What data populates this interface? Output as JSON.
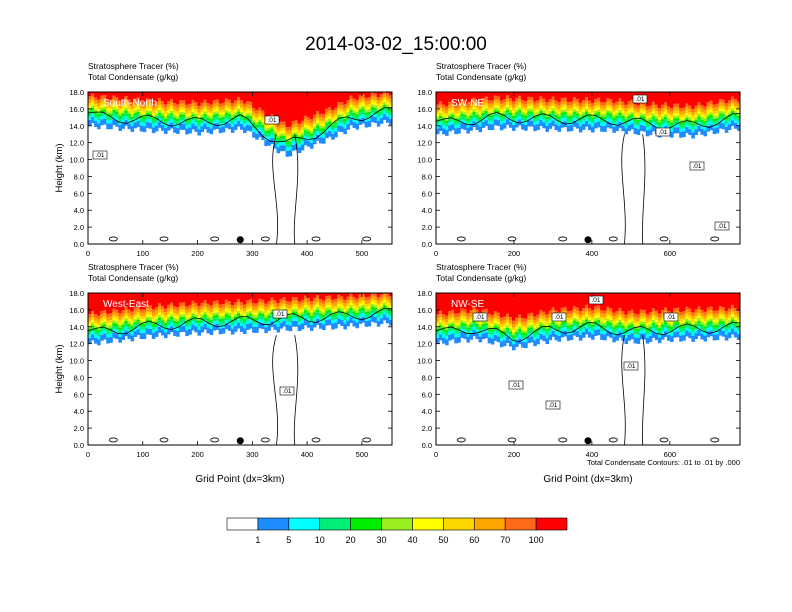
{
  "title": "2014-03-02_15:00:00",
  "footnote": "Total Condensate Contours: .01 to .01 by .000",
  "colors": {
    "bins": [
      "#ffffff",
      "#1e8cff",
      "#00ffff",
      "#00ee76",
      "#00ee00",
      "#9aef1e",
      "#ffff00",
      "#ffd700",
      "#ffa500",
      "#ff6a1a",
      "#ff0000"
    ]
  },
  "colorbar": {
    "labels": [
      "1",
      "5",
      "10",
      "20",
      "30",
      "40",
      "50",
      "60",
      "70",
      "100"
    ]
  },
  "chart_data": [
    {
      "type": "heatmap",
      "name": "South-North",
      "subtitle1": "Stratosphere Tracer   (%)",
      "subtitle2": "Total Condensate   (g/kg)",
      "ylabel": "Height (km)",
      "xlabel": "",
      "xlim": [
        0,
        555
      ],
      "ylim": [
        0,
        18
      ],
      "xticks": [
        "0",
        "100",
        "200",
        "300",
        "400",
        "500"
      ],
      "yticks": [
        "0.0",
        "2.0",
        "4.0",
        "6.0",
        "8.0",
        "10.0",
        "12.0",
        "14.0",
        "16.0",
        "18.0"
      ],
      "marker_x": 278,
      "contour_labels": [
        ".01",
        ".01"
      ],
      "tracer_profile_x": [
        0,
        100,
        200,
        280,
        320,
        360,
        400,
        440,
        480,
        555
      ],
      "tracer_base_km": [
        14.0,
        13.5,
        13.2,
        13.6,
        12.0,
        10.5,
        11.5,
        12.5,
        13.8,
        14.5
      ]
    },
    {
      "type": "heatmap",
      "name": "SW-NE",
      "subtitle1": "Stratosphere Tracer   (%)",
      "subtitle2": "Total Condensate   (g/kg)",
      "ylabel": "",
      "xlabel": "",
      "xlim": [
        0,
        780
      ],
      "ylim": [
        0,
        18
      ],
      "xticks": [
        "0",
        "200",
        "400",
        "600"
      ],
      "yticks": [
        "0.0",
        "2.0",
        "4.0",
        "6.0",
        "8.0",
        "10.0",
        "12.0",
        "14.0",
        "16.0",
        "18.0"
      ],
      "marker_x": 390,
      "contour_labels": [
        ".01",
        ".01",
        ".01",
        ".01"
      ],
      "tracer_profile_x": [
        0,
        150,
        300,
        450,
        550,
        650,
        780
      ],
      "tracer_base_km": [
        13.0,
        13.8,
        13.6,
        13.5,
        13.0,
        12.8,
        13.8
      ]
    },
    {
      "type": "heatmap",
      "name": "West-East",
      "subtitle1": "Stratosphere Tracer   (%)",
      "subtitle2": "Total Condensate   (g/kg)",
      "ylabel": "Height (km)",
      "xlabel": "Grid Point (dx=3km)",
      "xlim": [
        0,
        555
      ],
      "ylim": [
        0,
        18
      ],
      "xticks": [
        "0",
        "100",
        "200",
        "300",
        "400",
        "500"
      ],
      "yticks": [
        "0.0",
        "2.0",
        "4.0",
        "6.0",
        "8.0",
        "10.0",
        "12.0",
        "14.0",
        "16.0",
        "18.0"
      ],
      "marker_x": 278,
      "contour_labels": [
        ".01",
        ".01"
      ],
      "tracer_profile_x": [
        0,
        100,
        200,
        300,
        380,
        460,
        555
      ],
      "tracer_base_km": [
        12.0,
        12.8,
        13.3,
        13.5,
        13.8,
        14.0,
        14.5
      ]
    },
    {
      "type": "heatmap",
      "name": "NW-SE",
      "subtitle1": "Stratosphere Tracer   (%)",
      "subtitle2": "Total Condensate   (g/kg)",
      "ylabel": "",
      "xlabel": "Grid Point (dx=3km)",
      "xlim": [
        0,
        780
      ],
      "ylim": [
        0,
        18
      ],
      "xticks": [
        "0",
        "200",
        "400",
        "600"
      ],
      "yticks": [
        "0.0",
        "2.0",
        "4.0",
        "6.0",
        "8.0",
        "10.0",
        "12.0",
        "14.0",
        "16.0",
        "18.0"
      ],
      "marker_x": 390,
      "contour_labels": [
        ".01",
        ".01",
        ".01",
        ".01",
        ".01",
        ".01",
        ".01"
      ],
      "tracer_profile_x": [
        0,
        100,
        200,
        300,
        400,
        500,
        600,
        700,
        780
      ],
      "tracer_base_km": [
        12.0,
        12.6,
        11.5,
        12.5,
        12.8,
        12.2,
        12.5,
        12.6,
        12.8
      ]
    }
  ]
}
